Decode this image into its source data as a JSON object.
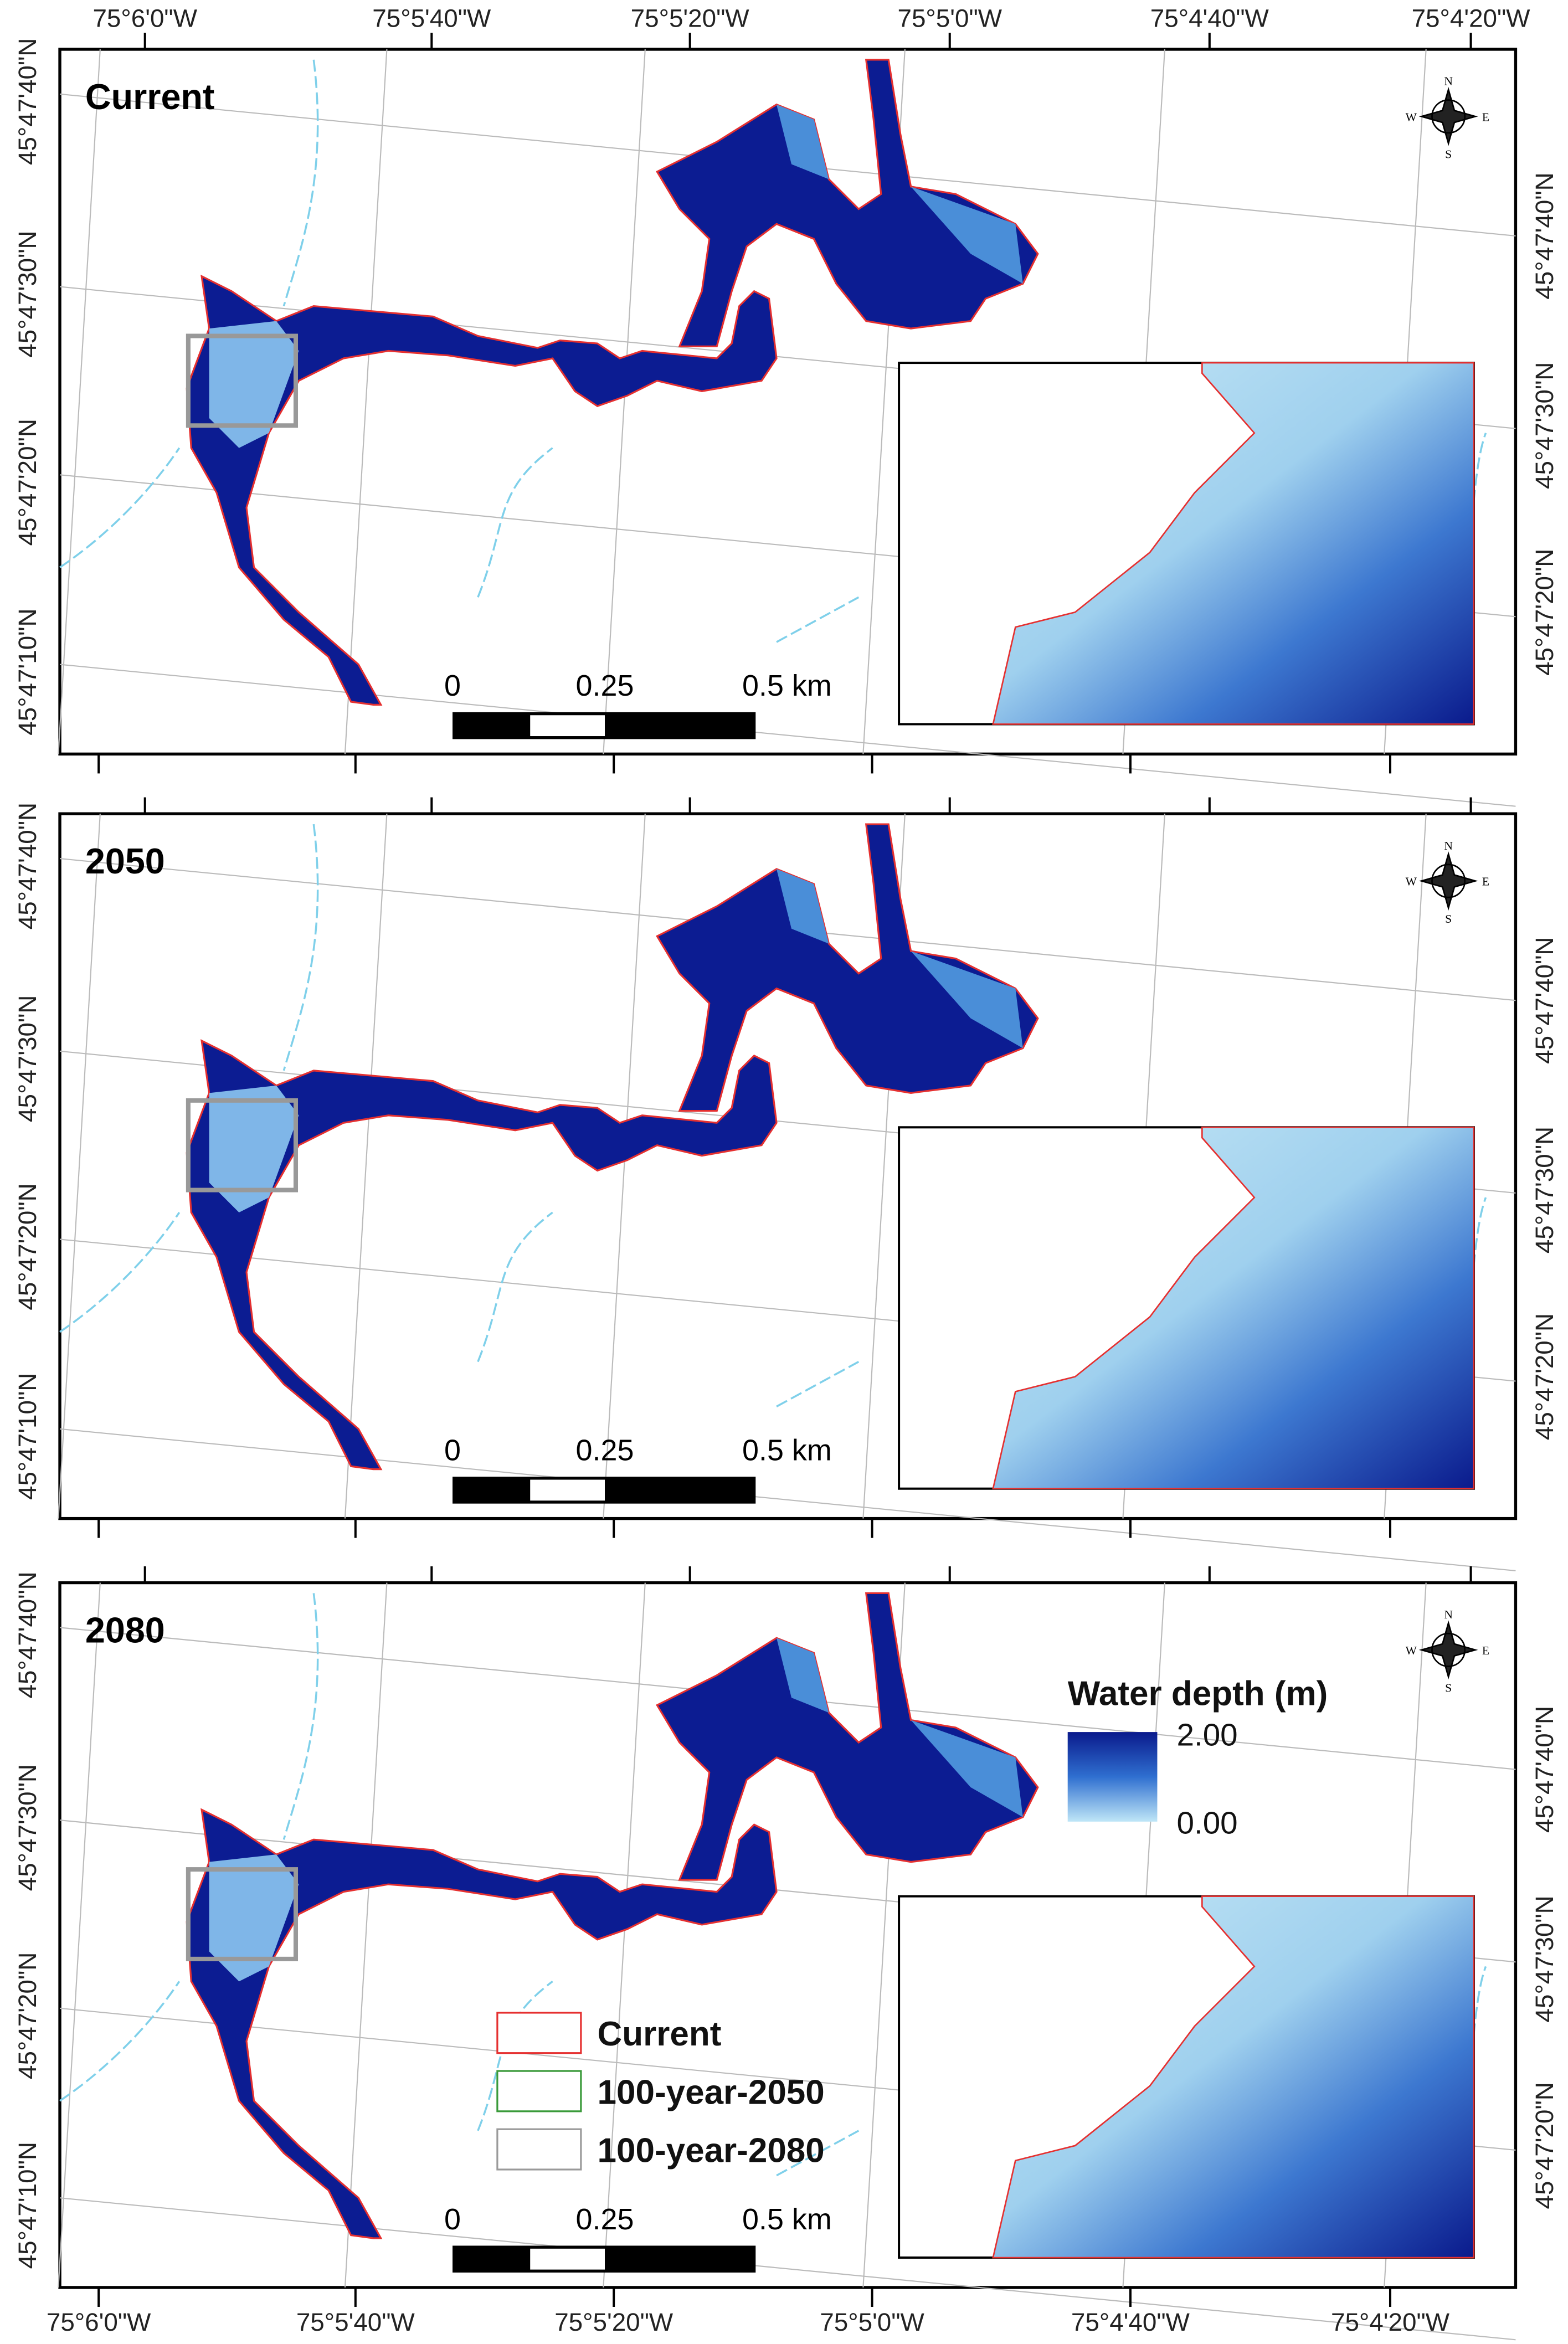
{
  "panels": [
    {
      "title": "Current",
      "top_lon_labels": [
        "75°6'0\"W",
        "75°5'40\"W",
        "75°5'20\"W",
        "75°5'0\"W",
        "75°4'40\"W",
        "75°4'20\"W"
      ],
      "left_lat_labels": [
        "45°47'40\"N",
        "45°47'30\"N",
        "45°47'20\"N",
        "45°47'10\"N"
      ],
      "right_lat_labels": [
        "45°47'40\"N",
        "45°47'30\"N",
        "45°47'20\"N"
      ],
      "scale_bar": [
        "0",
        "0.25",
        "0.5 km"
      ]
    },
    {
      "title": "2050",
      "left_lat_labels": [
        "45°47'40\"N",
        "45°47'30\"N",
        "45°47'20\"N",
        "45°47'10\"N"
      ],
      "right_lat_labels": [
        "45°47'40\"N",
        "45°47'30\"N",
        "45°47'20\"N"
      ],
      "scale_bar": [
        "0",
        "0.25",
        "0.5 km"
      ]
    },
    {
      "title": "2080",
      "left_lat_labels": [
        "45°47'40\"N",
        "45°47'30\"N",
        "45°47'20\"N",
        "45°47'10\"N"
      ],
      "right_lat_labels": [
        "45°47'40\"N",
        "45°47'30\"N",
        "45°47'20\"N"
      ],
      "scale_bar": [
        "0",
        "0.25",
        "0.5 km"
      ],
      "bottom_lon_labels": [
        "75°6'0\"W",
        "75°5'40\"W",
        "75°5'20\"W",
        "75°5'0\"W",
        "75°4'40\"W",
        "75°4'20\"W"
      ]
    }
  ],
  "compass": {
    "n": "N",
    "s": "S",
    "e": "E",
    "w": "W"
  },
  "colorbar": {
    "title": "Water depth (m)",
    "max_label": "2.00",
    "min_label": "0.00"
  },
  "legend": [
    {
      "label": "Current",
      "color": "#e53030"
    },
    {
      "label": "100-year-2050",
      "color": "#3a9a3a"
    },
    {
      "label": "100-year-2080",
      "color": "#9a9a9a"
    }
  ]
}
